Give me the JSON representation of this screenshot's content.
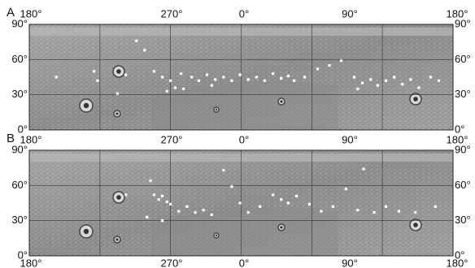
{
  "panels": [
    {
      "label": "A",
      "x_tick_labels_top": [
        "180°",
        "270°",
        "0°",
        "90°",
        "180°"
      ],
      "y_tick_labels": [
        "90°",
        "60°",
        "30°",
        "0°"
      ],
      "points": [
        [
          -89,
          76
        ],
        [
          -82,
          68
        ],
        [
          -157,
          45
        ],
        [
          -125,
          50
        ],
        [
          -98,
          47
        ],
        [
          -74,
          50
        ],
        [
          -67,
          45
        ],
        [
          -60,
          42
        ],
        [
          -56,
          36
        ],
        [
          -51,
          48
        ],
        [
          -42,
          45
        ],
        [
          -36,
          42
        ],
        [
          -29,
          47
        ],
        [
          -22,
          43
        ],
        [
          -15,
          45
        ],
        [
          -8,
          42
        ],
        [
          -1,
          47
        ],
        [
          6,
          43
        ],
        [
          13,
          45
        ],
        [
          20,
          42
        ],
        [
          27,
          48
        ],
        [
          34,
          44
        ],
        [
          40,
          46
        ],
        [
          45,
          42
        ],
        [
          54,
          45
        ],
        [
          65,
          52
        ],
        [
          75,
          55
        ],
        [
          85,
          59
        ],
        [
          96,
          45
        ],
        [
          103,
          40
        ],
        [
          110,
          43
        ],
        [
          116,
          38
        ],
        [
          123,
          42
        ],
        [
          130,
          45
        ],
        [
          137,
          39
        ],
        [
          144,
          43
        ],
        [
          151,
          36
        ],
        [
          161,
          45
        ],
        [
          168,
          42
        ],
        [
          -49,
          35
        ],
        [
          -63,
          33
        ],
        [
          -25,
          38
        ],
        [
          -105,
          31
        ],
        [
          -122,
          42
        ],
        [
          99,
          35
        ]
      ]
    },
    {
      "label": "B",
      "x_tick_labels_top": [
        "180°",
        "270°",
        "0°",
        "90°",
        "180°"
      ],
      "x_tick_labels_bottom": [
        "180°",
        "270°",
        "0°",
        "90°",
        "180°"
      ],
      "y_tick_labels": [
        "90°",
        "60°",
        "30°",
        "0°"
      ],
      "points": [
        [
          -77,
          64
        ],
        [
          -74,
          52
        ],
        [
          -70,
          48
        ],
        [
          -67,
          51
        ],
        [
          -63,
          46
        ],
        [
          -60,
          44
        ],
        [
          -53,
          38
        ],
        [
          -46,
          42
        ],
        [
          -39,
          37
        ],
        [
          -32,
          39
        ],
        [
          -25,
          35
        ],
        [
          -15,
          73
        ],
        [
          -8,
          59
        ],
        [
          -1,
          45
        ],
        [
          6,
          37
        ],
        [
          16,
          42
        ],
        [
          27,
          52
        ],
        [
          34,
          48
        ],
        [
          40,
          45
        ],
        [
          47,
          51
        ],
        [
          58,
          44
        ],
        [
          68,
          38
        ],
        [
          78,
          42
        ],
        [
          89,
          57
        ],
        [
          104,
          74
        ],
        [
          99,
          39
        ],
        [
          113,
          37
        ],
        [
          123,
          42
        ],
        [
          134,
          38
        ],
        [
          148,
          37
        ],
        [
          165,
          42
        ],
        [
          -98,
          52
        ],
        [
          -80,
          33
        ],
        [
          -67,
          30
        ]
      ]
    }
  ]
}
